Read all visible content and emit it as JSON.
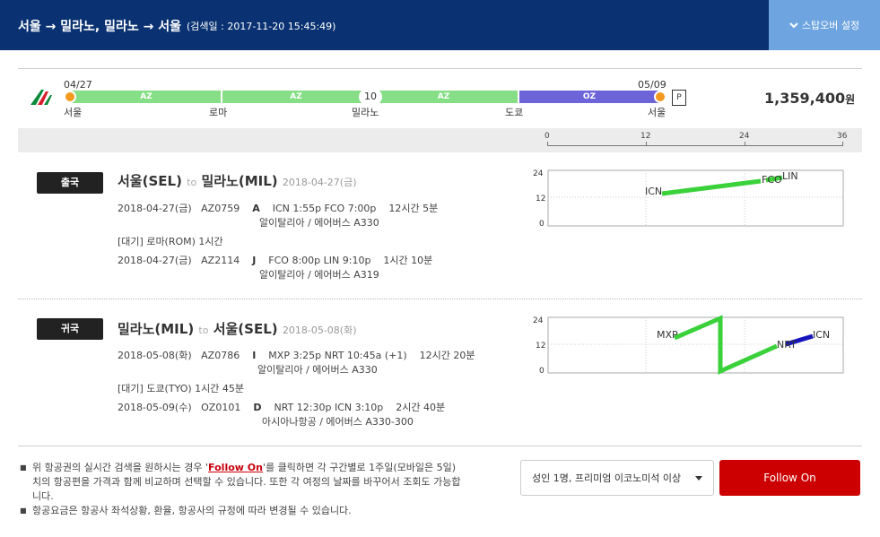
{
  "header": {
    "title": "서울 → 밀라노, 밀라노 → 서울",
    "search_date": "(검색일 : 2017-11-20 15:45:49)",
    "stopover_label": "스탑오버 설정"
  },
  "route_bar": {
    "start_date": "04/27",
    "end_date": "05/09",
    "segments": [
      {
        "carrier": "AZ",
        "color": "#86de86"
      },
      {
        "carrier": "AZ",
        "color": "#86de86"
      },
      {
        "carrier": "AZ",
        "color": "#86de86"
      },
      {
        "carrier": "OZ",
        "color": "#6c64d8"
      }
    ],
    "nights": "10",
    "cities": [
      "서울",
      "로마",
      "밀라노",
      "도쿄",
      "서울"
    ],
    "p_badge": "P",
    "price": "1,359,400",
    "currency": "원",
    "scale_ticks": [
      "0",
      "12",
      "24",
      "36"
    ]
  },
  "outbound": {
    "badge": "출국",
    "from": "서울(SEL)",
    "to_word": "to",
    "to": "밀라노(MIL)",
    "date": "2018-04-27(금)",
    "flights": [
      {
        "date": "2018-04-27(금)",
        "number": "AZ0759",
        "class": "A",
        "times": "ICN 1:55p FCO 7:00p",
        "duration": "12시간 5분",
        "aircraft": "알이탈리아 / 에어버스 A330"
      },
      {
        "date": "2018-04-27(금)",
        "number": "AZ2114",
        "class": "J",
        "times": "FCO 8:00p LIN 9:10p",
        "duration": "1시간 10분",
        "aircraft": "알이탈리아 / 에어버스 A319"
      }
    ],
    "layover": "[대기] 로마(ROM)   1시간",
    "chart": {
      "y_ticks": [
        "24",
        "12",
        "0"
      ],
      "labels": [
        "ICN",
        "FCO",
        "LIN"
      ]
    }
  },
  "inbound": {
    "badge": "귀국",
    "from": "밀라노(MIL)",
    "to_word": "to",
    "to": "서울(SEL)",
    "date": "2018-05-08(화)",
    "flights": [
      {
        "date": "2018-05-08(화)",
        "number": "AZ0786",
        "class": "I",
        "times": "MXP 3:25p NRT 10:45a (+1)",
        "duration": "12시간 20분",
        "aircraft": "알이탈리아 / 에어버스 A330"
      },
      {
        "date": "2018-05-09(수)",
        "number": "OZ0101",
        "class": "D",
        "times": "NRT 12:30p ICN 3:10p",
        "duration": "2시간 40분",
        "aircraft": "아시아나항공 / 에어버스 A330-300"
      }
    ],
    "layover": "[대기] 도쿄(TYO)   1시간 45분",
    "chart": {
      "y_ticks": [
        "24",
        "12",
        "0"
      ],
      "labels": [
        "MXP",
        "NRT",
        "ICN"
      ]
    }
  },
  "notices": {
    "line1_pre": "위 항공권의 실시간 검색을 원하시는 경우 '",
    "line1_link": "Follow On",
    "line1_post": "'를 클릭하면 각 구간별로 1주일(모바일은 5일)치의 항공편을 가격과 함께 비교하며 선택할 수 있습니다. 또한 각 여정의 날짜를 바꾸어서 조회도 가능합니다.",
    "line2": "항공요금은 항공사 좌석상황, 환율, 항공사의 규정에 따라 변경될 수 있습니다."
  },
  "footer": {
    "pax_select": "성인 1명, 프리미엄 이코노미석 이상",
    "follow_button": "Follow On"
  }
}
